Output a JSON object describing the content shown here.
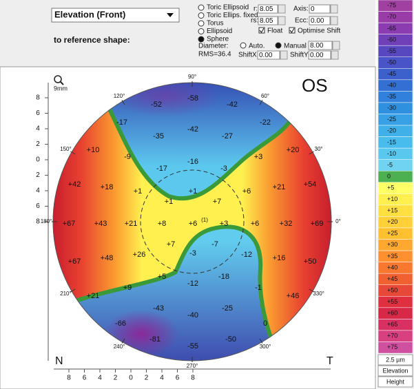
{
  "top_panel": {
    "dropdown": "Elevation (Front)",
    "reference_label": "to reference shape:",
    "shape_options": [
      "Toric Ellipsoid",
      "Toric Ellips. fixed",
      "Torus",
      "Ellipsoid",
      "Sphere"
    ],
    "selected_shape": 4,
    "r_label": "r:",
    "r_value": "8.05",
    "rs_label": "rs:",
    "rs_value": "8.05",
    "axis_label": "Axis:",
    "axis_value": "0",
    "ecc_label": "Ecc:",
    "ecc_value": "0.00",
    "float_label": "Float",
    "optimise_label": "Optimise Shift",
    "diameter_label": "Diameter:",
    "auto_label": "Auto.",
    "manual_label": "Manual",
    "diameter_value": "8.00",
    "rms": "RMS=36.4",
    "shiftx_label": "ShiftX",
    "shiftx_value": "0.00",
    "shifty_label": "ShiftY",
    "shifty_value": "0.00"
  },
  "map": {
    "scale_mm": "9mm",
    "eye": "OS",
    "nasal": "N",
    "temporal": "T",
    "x_ticks": [
      8,
      6,
      4,
      2,
      0,
      2,
      4,
      6,
      8
    ],
    "y_ticks": [
      8,
      6,
      4,
      2,
      0,
      2,
      4,
      6,
      8
    ],
    "angles": [
      "90°",
      "60°",
      "30°",
      "0°",
      "330°",
      "300°",
      "270°",
      "240°",
      "210°",
      "180°",
      "150°",
      "120°"
    ],
    "points": [
      "-58",
      "-52",
      "-42",
      "-17",
      "-42",
      "-22",
      "-35",
      "-27",
      "+10",
      "-9",
      "+20",
      "-17",
      "-16",
      "-3",
      "+3",
      "+42",
      "+18",
      "+1",
      "+1",
      "+1",
      "+7",
      "+6",
      "+21",
      "+54",
      "+67",
      "+43",
      "+21",
      "+8",
      "+6",
      "(1)",
      "+3",
      "+6",
      "+32",
      "+69",
      "+7",
      "-7",
      "+26",
      "-3",
      "-12",
      "+67",
      "+48",
      "+16",
      "+50",
      "+5",
      "-12",
      "-18",
      "+9",
      "-1",
      "+21",
      "+46",
      "-43",
      "-25",
      "-40",
      "-66",
      "0",
      "-81",
      "-50",
      "-55"
    ]
  },
  "scale": {
    "entries": [
      {
        "label": "-75",
        "color": "#a040a0"
      },
      {
        "label": "-70",
        "color": "#9a3ca8"
      },
      {
        "label": "-65",
        "color": "#8a3cb0"
      },
      {
        "label": "-60",
        "color": "#7040b8"
      },
      {
        "label": "-55",
        "color": "#5848c0"
      },
      {
        "label": "-50",
        "color": "#4854c8"
      },
      {
        "label": "-45",
        "color": "#3c60cc"
      },
      {
        "label": "-40",
        "color": "#3470d4"
      },
      {
        "label": "-35",
        "color": "#3080dc"
      },
      {
        "label": "-30",
        "color": "#3090e0"
      },
      {
        "label": "-25",
        "color": "#38a0e4"
      },
      {
        "label": "-20",
        "color": "#40b0e8"
      },
      {
        "label": "-15",
        "color": "#48bcec"
      },
      {
        "label": "-10",
        "color": "#58c8ee"
      },
      {
        "label": "-5",
        "color": "#70d4f0"
      },
      {
        "label": "0",
        "color": "#4caf50"
      },
      {
        "label": "+5",
        "color": "#ffff66"
      },
      {
        "label": "+10",
        "color": "#fff050"
      },
      {
        "label": "+15",
        "color": "#ffe040"
      },
      {
        "label": "+20",
        "color": "#ffd038"
      },
      {
        "label": "+25",
        "color": "#ffc030"
      },
      {
        "label": "+30",
        "color": "#ffa830"
      },
      {
        "label": "+35",
        "color": "#ff9030"
      },
      {
        "label": "+40",
        "color": "#f87830"
      },
      {
        "label": "+45",
        "color": "#f06030"
      },
      {
        "label": "+50",
        "color": "#e84838"
      },
      {
        "label": "+55",
        "color": "#e03040"
      },
      {
        "label": "+60",
        "color": "#d82848"
      },
      {
        "label": "+65",
        "color": "#d83060"
      },
      {
        "label": "+70",
        "color": "#d84080"
      },
      {
        "label": "+75",
        "color": "#d050a0"
      }
    ],
    "step": "2.5 µm",
    "mode": "Elevation",
    "type": "Height"
  }
}
